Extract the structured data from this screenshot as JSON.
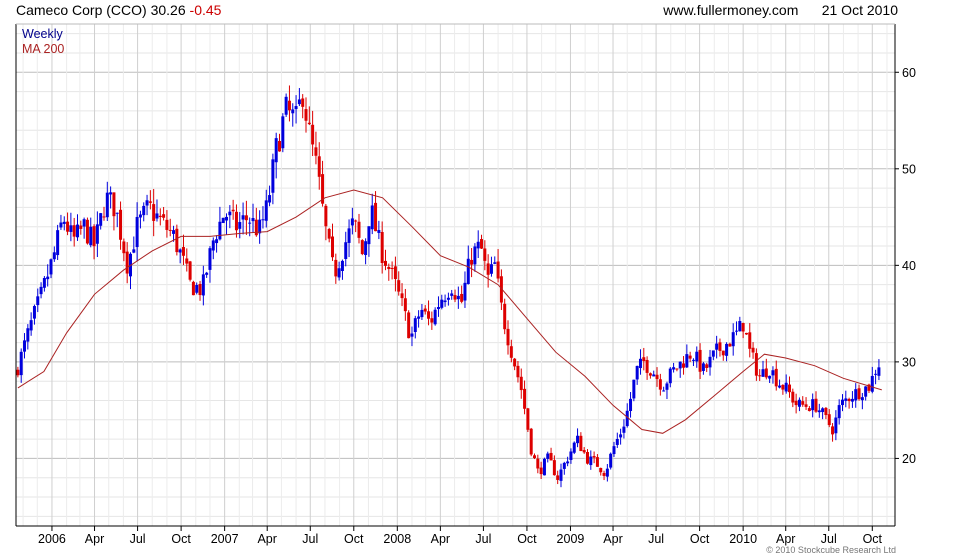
{
  "header": {
    "name": "Cameco Corp (CCO)",
    "last": "30.26",
    "change": "-0.45",
    "site": "www.fullermoney.com",
    "date": "21 Oct 2010"
  },
  "legend": {
    "weekly": "Weekly",
    "ma": "MA 200"
  },
  "copyright": "© 2010 Stockcube Research Ltd",
  "colors": {
    "up": "#0000dd",
    "down": "#dd0000",
    "ma": "#aa2222",
    "grid": "#d9d9d9",
    "axis": "#000000"
  },
  "chart_data": {
    "type": "candlestick",
    "y_axis_position": "right",
    "ylim": [
      13,
      65
    ],
    "y_ticks": [
      20,
      30,
      40,
      50,
      60
    ],
    "x_ticks": [
      {
        "date": "2006-01-01",
        "label": "2006"
      },
      {
        "date": "2006-04-01",
        "label": "Apr"
      },
      {
        "date": "2006-07-01",
        "label": "Jul"
      },
      {
        "date": "2006-10-01",
        "label": "Oct"
      },
      {
        "date": "2007-01-01",
        "label": "2007"
      },
      {
        "date": "2007-04-01",
        "label": "Apr"
      },
      {
        "date": "2007-07-01",
        "label": "Jul"
      },
      {
        "date": "2007-10-01",
        "label": "Oct"
      },
      {
        "date": "2008-01-01",
        "label": "2008"
      },
      {
        "date": "2008-04-01",
        "label": "Apr"
      },
      {
        "date": "2008-07-01",
        "label": "Jul"
      },
      {
        "date": "2008-10-01",
        "label": "Oct"
      },
      {
        "date": "2009-01-01",
        "label": "2009"
      },
      {
        "date": "2009-04-01",
        "label": "Apr"
      },
      {
        "date": "2009-07-01",
        "label": "Jul"
      },
      {
        "date": "2009-10-01",
        "label": "Oct"
      },
      {
        "date": "2010-01-01",
        "label": "2010"
      },
      {
        "date": "2010-04-01",
        "label": "Apr"
      },
      {
        "date": "2010-07-01",
        "label": "Jul"
      },
      {
        "date": "2010-10-01",
        "label": "Oct"
      }
    ],
    "weekly_close_path": [
      [
        "2005-10-21",
        29.5
      ],
      [
        "2005-11-15",
        33.5
      ],
      [
        "2005-12-10",
        37.0
      ],
      [
        "2006-01-05",
        41.0
      ],
      [
        "2006-01-25",
        45.0
      ],
      [
        "2006-02-15",
        42.5
      ],
      [
        "2006-03-10",
        44.0
      ],
      [
        "2006-04-01",
        42.0
      ],
      [
        "2006-04-25",
        47.0
      ],
      [
        "2006-05-15",
        46.0
      ],
      [
        "2006-06-10",
        40.0
      ],
      [
        "2006-06-30",
        44.0
      ],
      [
        "2006-07-25",
        46.0
      ],
      [
        "2006-08-20",
        44.5
      ],
      [
        "2006-09-15",
        43.0
      ],
      [
        "2006-10-01",
        41.0
      ],
      [
        "2006-10-20",
        38.0
      ],
      [
        "2006-11-15",
        37.5
      ],
      [
        "2006-12-10",
        43.0
      ],
      [
        "2007-01-01",
        45.5
      ],
      [
        "2007-01-25",
        44.0
      ],
      [
        "2007-02-20",
        45.0
      ],
      [
        "2007-03-15",
        43.5
      ],
      [
        "2007-04-01",
        46.0
      ],
      [
        "2007-04-20",
        52.0
      ],
      [
        "2007-05-10",
        56.0
      ],
      [
        "2007-06-01",
        55.0
      ],
      [
        "2007-06-15",
        58.0
      ],
      [
        "2007-07-01",
        53.0
      ],
      [
        "2007-07-15",
        50.0
      ],
      [
        "2007-08-01",
        44.0
      ],
      [
        "2007-08-20",
        39.0
      ],
      [
        "2007-09-10",
        42.0
      ],
      [
        "2007-10-01",
        44.5
      ],
      [
        "2007-10-20",
        41.0
      ],
      [
        "2007-11-05",
        46.0
      ],
      [
        "2007-11-25",
        42.0
      ],
      [
        "2007-12-20",
        39.0
      ],
      [
        "2008-01-10",
        36.0
      ],
      [
        "2008-01-30",
        32.5
      ],
      [
        "2008-02-20",
        35.5
      ],
      [
        "2008-03-10",
        34.0
      ],
      [
        "2008-04-01",
        36.5
      ],
      [
        "2008-04-25",
        38.0
      ],
      [
        "2008-05-15",
        36.0
      ],
      [
        "2008-06-05",
        41.0
      ],
      [
        "2008-06-25",
        42.0
      ],
      [
        "2008-07-10",
        38.5
      ],
      [
        "2008-07-25",
        40.0
      ],
      [
        "2008-08-10",
        35.0
      ],
      [
        "2008-08-30",
        31.0
      ],
      [
        "2008-09-20",
        27.0
      ],
      [
        "2008-10-10",
        21.0
      ],
      [
        "2008-10-25",
        18.5
      ],
      [
        "2008-11-15",
        20.0
      ],
      [
        "2008-12-05",
        18.0
      ],
      [
        "2008-12-25",
        20.0
      ],
      [
        "2009-01-15",
        22.0
      ],
      [
        "2009-02-05",
        20.0
      ],
      [
        "2009-02-25",
        19.5
      ],
      [
        "2009-03-15",
        18.5
      ],
      [
        "2009-04-01",
        21.0
      ],
      [
        "2009-04-20",
        23.0
      ],
      [
        "2009-05-05",
        25.5
      ],
      [
        "2009-05-20",
        29.0
      ],
      [
        "2009-06-05",
        30.0
      ],
      [
        "2009-06-25",
        29.0
      ],
      [
        "2009-07-15",
        27.5
      ],
      [
        "2009-08-05",
        29.0
      ],
      [
        "2009-08-25",
        30.0
      ],
      [
        "2009-09-15",
        31.0
      ],
      [
        "2009-10-10",
        29.0
      ],
      [
        "2009-11-05",
        31.0
      ],
      [
        "2009-11-30",
        32.0
      ],
      [
        "2009-12-20",
        33.0
      ],
      [
        "2010-01-01",
        34.0
      ],
      [
        "2010-01-15",
        31.0
      ],
      [
        "2010-02-05",
        28.5
      ],
      [
        "2010-02-25",
        29.5
      ],
      [
        "2010-03-15",
        28.0
      ],
      [
        "2010-04-05",
        27.0
      ],
      [
        "2010-04-25",
        25.5
      ],
      [
        "2010-05-15",
        25.5
      ],
      [
        "2010-06-05",
        25.5
      ],
      [
        "2010-06-25",
        24.0
      ],
      [
        "2010-07-10",
        23.0
      ],
      [
        "2010-07-25",
        25.5
      ],
      [
        "2010-08-15",
        26.5
      ],
      [
        "2010-09-05",
        27.0
      ],
      [
        "2010-09-25",
        27.5
      ],
      [
        "2010-10-10",
        29.5
      ],
      [
        "2010-10-21",
        30.26
      ]
    ],
    "ma_200": [
      [
        "2005-10-21",
        27.3
      ],
      [
        "2005-12-15",
        29.0
      ],
      [
        "2006-02-01",
        33.0
      ],
      [
        "2006-04-01",
        37.0
      ],
      [
        "2006-06-01",
        39.5
      ],
      [
        "2006-08-01",
        41.5
      ],
      [
        "2006-10-01",
        43.0
      ],
      [
        "2006-12-01",
        43.0
      ],
      [
        "2007-02-01",
        43.3
      ],
      [
        "2007-04-01",
        43.5
      ],
      [
        "2007-06-01",
        45.0
      ],
      [
        "2007-08-01",
        47.0
      ],
      [
        "2007-10-01",
        47.8
      ],
      [
        "2007-12-01",
        47.0
      ],
      [
        "2008-02-01",
        44.0
      ],
      [
        "2008-04-01",
        41.0
      ],
      [
        "2008-06-01",
        39.8
      ],
      [
        "2008-08-01",
        38.0
      ],
      [
        "2008-10-01",
        34.5
      ],
      [
        "2008-12-01",
        31.0
      ],
      [
        "2009-02-01",
        28.5
      ],
      [
        "2009-04-01",
        25.5
      ],
      [
        "2009-06-01",
        23.0
      ],
      [
        "2009-07-15",
        22.6
      ],
      [
        "2009-09-01",
        24.0
      ],
      [
        "2009-11-01",
        26.5
      ],
      [
        "2010-01-01",
        29.0
      ],
      [
        "2010-02-15",
        30.8
      ],
      [
        "2010-04-01",
        30.4
      ],
      [
        "2010-06-01",
        29.6
      ],
      [
        "2010-08-01",
        28.3
      ],
      [
        "2010-10-21",
        27.1
      ]
    ]
  }
}
